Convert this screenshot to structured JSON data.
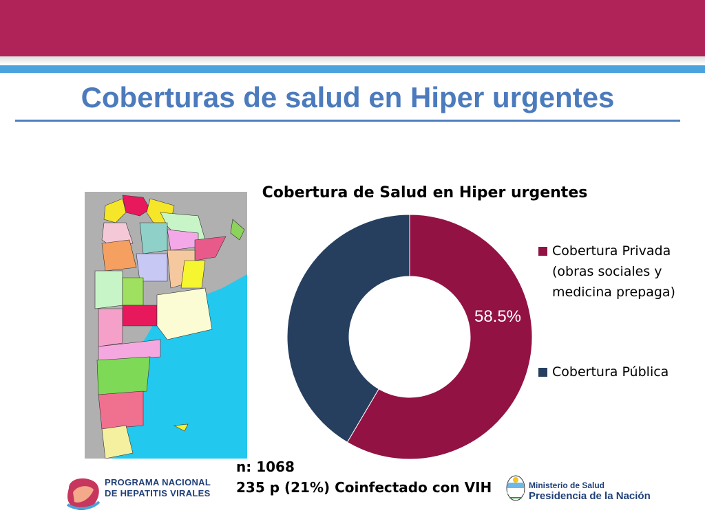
{
  "slide": {
    "title": "Coberturas de salud en Hiper urgentes",
    "colors": {
      "header_band": "#b02358",
      "stripe": "#4aa3dc",
      "title": "#4b7bbd"
    }
  },
  "chart_data": {
    "type": "pie",
    "title": "Cobertura de Salud en Hiper urgentes",
    "series": [
      {
        "name": "Cobertura Privada (obras sociales y medicina prepaga)",
        "value": 58.5,
        "color": "#921244"
      },
      {
        "name": "Cobertura Pública",
        "value": 41.5,
        "color": "#263f5f"
      }
    ],
    "data_labels": [
      "58.5%"
    ],
    "legend_position": "right"
  },
  "legend": {
    "items": [
      {
        "label": "Cobertura Privada (obras sociales y medicina prepaga)",
        "color": "#921244"
      },
      {
        "label": "Cobertura Pública",
        "color": "#263f5f"
      }
    ]
  },
  "notes": {
    "n": "n: 1068",
    "coinfectado": "235 p (21%) Coinfectado con VIH"
  },
  "logos": {
    "left_line1": "PROGRAMA NACIONAL",
    "left_line2": "DE HEPATITIS VIRALES",
    "right_line1": "Ministerio de Salud",
    "right_line2": "Presidencia de la Nación"
  }
}
